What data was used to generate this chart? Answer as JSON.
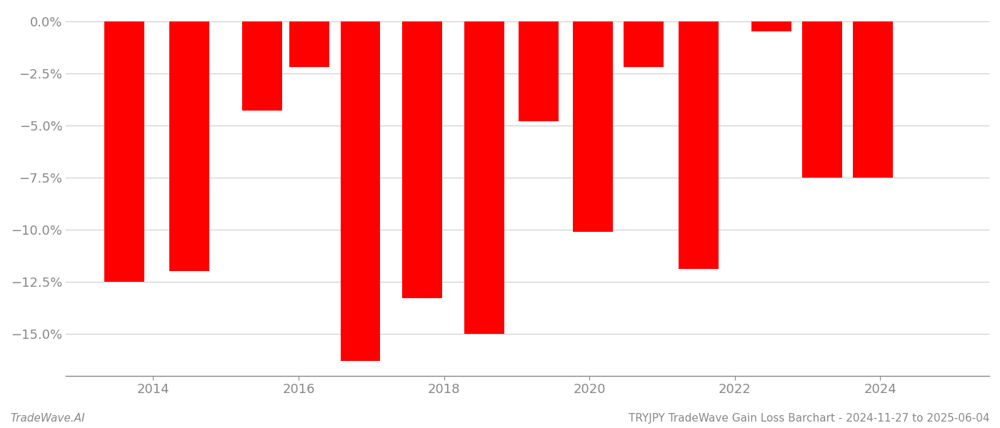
{
  "bars": [
    {
      "x": 2013.6,
      "value": -12.5
    },
    {
      "x": 2014.5,
      "value": -12.0
    },
    {
      "x": 2015.5,
      "value": -4.3
    },
    {
      "x": 2016.15,
      "value": -2.2
    },
    {
      "x": 2016.85,
      "value": -16.3
    },
    {
      "x": 2017.7,
      "value": -13.3
    },
    {
      "x": 2018.55,
      "value": -15.0
    },
    {
      "x": 2019.3,
      "value": -4.8
    },
    {
      "x": 2020.05,
      "value": -10.1
    },
    {
      "x": 2020.75,
      "value": -2.2
    },
    {
      "x": 2021.5,
      "value": -11.9
    },
    {
      "x": 2022.5,
      "value": -0.5
    },
    {
      "x": 2023.2,
      "value": -7.5
    },
    {
      "x": 2023.9,
      "value": -7.5
    }
  ],
  "bar_color": "#ff0000",
  "bar_width": 0.55,
  "ylim": [
    -17.0,
    0.5
  ],
  "yticks": [
    0.0,
    -2.5,
    -5.0,
    -7.5,
    -10.0,
    -12.5,
    -15.0
  ],
  "xlim": [
    2012.8,
    2025.5
  ],
  "xticks": [
    2014,
    2016,
    2018,
    2020,
    2022,
    2024
  ],
  "footer_left": "TradeWave.AI",
  "footer_right": "TRYJPY TradeWave Gain Loss Barchart - 2024-11-27 to 2025-06-04",
  "footer_fontsize": 11,
  "grid_color": "#cccccc",
  "spine_color": "#888888",
  "tick_label_color": "#888888",
  "background_color": "#ffffff"
}
